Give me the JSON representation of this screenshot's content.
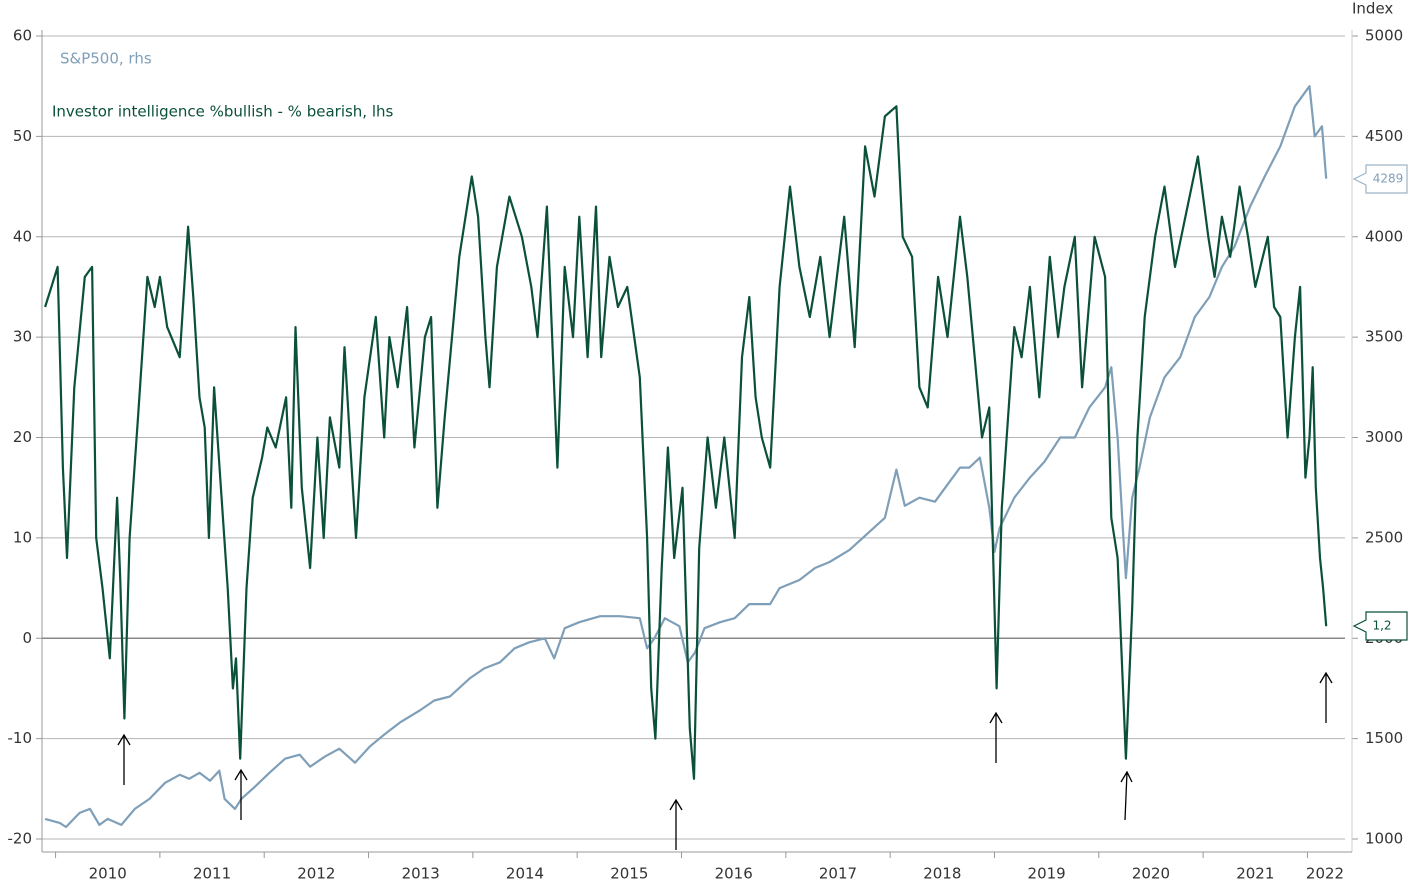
{
  "chart_data": {
    "type": "line",
    "annotations": {
      "y2_unit": "Index",
      "last_spx": "4289",
      "last_ii": "1,2"
    },
    "xlim": [
      2009.87,
      2022.36
    ],
    "xticks": [
      {
        "value": 2010,
        "label": "2010"
      },
      {
        "value": 2011,
        "label": "2011"
      },
      {
        "value": 2012,
        "label": "2012"
      },
      {
        "value": 2013,
        "label": "2013"
      },
      {
        "value": 2014,
        "label": "2014"
      },
      {
        "value": 2015,
        "label": "2015"
      },
      {
        "value": 2016,
        "label": "2016"
      },
      {
        "value": 2017,
        "label": "2017"
      },
      {
        "value": 2018,
        "label": "2018"
      },
      {
        "value": 2019,
        "label": "2019"
      },
      {
        "value": 2020,
        "label": "2020"
      },
      {
        "value": 2021,
        "label": "2021"
      },
      {
        "value": 2022,
        "label": "2022"
      }
    ],
    "ylim": [
      -20,
      60
    ],
    "yticks": [
      -20,
      -10,
      0,
      10,
      20,
      30,
      40,
      50,
      60
    ],
    "y2lim": [
      1000,
      5000
    ],
    "y2ticks": [
      1000,
      1500,
      2000,
      2500,
      3000,
      3500,
      4000,
      4500,
      5000
    ],
    "grid": true,
    "series": [
      {
        "name": "S&P500, rhs",
        "color": "#7f9fb8",
        "axis": "y2",
        "x": [
          2009.9,
          2010.04,
          2010.1,
          2010.23,
          2010.33,
          2010.42,
          2010.5,
          2010.63,
          2010.76,
          2010.9,
          2011.05,
          2011.19,
          2011.28,
          2011.38,
          2011.48,
          2011.57,
          2011.62,
          2011.72,
          2011.78,
          2011.91,
          2012.05,
          2012.2,
          2012.34,
          2012.44,
          2012.58,
          2012.72,
          2012.87,
          2013.01,
          2013.15,
          2013.3,
          2013.49,
          2013.63,
          2013.78,
          2013.97,
          2014.11,
          2014.26,
          2014.4,
          2014.54,
          2014.69,
          2014.78,
          2014.88,
          2015.02,
          2015.22,
          2015.41,
          2015.6,
          2015.67,
          2015.74,
          2015.84,
          2015.98,
          2016.06,
          2016.13,
          2016.22,
          2016.37,
          2016.51,
          2016.65,
          2016.85,
          2016.94,
          2017.13,
          2017.28,
          2017.42,
          2017.61,
          2017.8,
          2017.95,
          2018.06,
          2018.14,
          2018.28,
          2018.43,
          2018.57,
          2018.67,
          2018.76,
          2018.86,
          2018.95,
          2019.0,
          2019.05,
          2019.19,
          2019.34,
          2019.48,
          2019.63,
          2019.77,
          2019.91,
          2020.06,
          2020.12,
          2020.18,
          2020.23,
          2020.26,
          2020.32,
          2020.39,
          2020.49,
          2020.63,
          2020.78,
          2020.92,
          2021.06,
          2021.18,
          2021.3,
          2021.45,
          2021.59,
          2021.74,
          2021.88,
          2022.02,
          2022.07,
          2022.14,
          2022.18
        ],
        "values": [
          1100,
          1080,
          1060,
          1130,
          1150,
          1070,
          1100,
          1070,
          1150,
          1200,
          1280,
          1320,
          1300,
          1330,
          1290,
          1340,
          1200,
          1150,
          1200,
          1260,
          1330,
          1400,
          1420,
          1360,
          1410,
          1450,
          1380,
          1460,
          1520,
          1580,
          1640,
          1690,
          1710,
          1800,
          1850,
          1880,
          1950,
          1980,
          2000,
          1900,
          2050,
          2080,
          2110,
          2110,
          2100,
          1950,
          2000,
          2100,
          2060,
          1880,
          1930,
          2050,
          2080,
          2100,
          2170,
          2170,
          2250,
          2290,
          2350,
          2380,
          2440,
          2530,
          2600,
          2840,
          2660,
          2700,
          2680,
          2780,
          2850,
          2850,
          2900,
          2650,
          2430,
          2550,
          2700,
          2800,
          2880,
          3000,
          3000,
          3150,
          3250,
          3350,
          3000,
          2550,
          2300,
          2700,
          2850,
          3100,
          3300,
          3400,
          3600,
          3700,
          3850,
          3950,
          4150,
          4300,
          4450,
          4650,
          4750,
          4500,
          4550,
          4289
        ]
      },
      {
        "name": "Investor intelligence %bullish - % bearish, lhs",
        "color": "#0b5138",
        "x": [
          2009.9,
          2009.96,
          2010.02,
          2010.07,
          2010.11,
          2010.18,
          2010.28,
          2010.35,
          2010.39,
          2010.45,
          2010.52,
          2010.59,
          2010.62,
          2010.66,
          2010.71,
          2010.79,
          2010.88,
          2010.95,
          2011.0,
          2011.07,
          2011.19,
          2011.27,
          2011.32,
          2011.38,
          2011.43,
          2011.47,
          2011.52,
          2011.65,
          2011.7,
          2011.73,
          2011.77,
          2011.83,
          2011.89,
          2011.98,
          2012.03,
          2012.11,
          2012.21,
          2012.26,
          2012.3,
          2012.36,
          2012.44,
          2012.51,
          2012.57,
          2012.63,
          2012.72,
          2012.77,
          2012.82,
          2012.88,
          2012.96,
          2013.07,
          2013.15,
          2013.2,
          2013.28,
          2013.37,
          2013.44,
          2013.54,
          2013.6,
          2013.66,
          2013.73,
          2013.87,
          2013.99,
          2014.05,
          2014.12,
          2014.16,
          2014.23,
          2014.35,
          2014.47,
          2014.56,
          2014.62,
          2014.71,
          2014.81,
          2014.88,
          2014.96,
          2015.02,
          2015.1,
          2015.18,
          2015.23,
          2015.31,
          2015.39,
          2015.48,
          2015.6,
          2015.67,
          2015.71,
          2015.75,
          2015.81,
          2015.87,
          2015.93,
          2016.01,
          2016.08,
          2016.12,
          2016.17,
          2016.25,
          2016.33,
          2016.41,
          2016.51,
          2016.58,
          2016.65,
          2016.71,
          2016.77,
          2016.85,
          2016.94,
          2017.04,
          2017.13,
          2017.23,
          2017.33,
          2017.42,
          2017.56,
          2017.66,
          2017.76,
          2017.85,
          2017.95,
          2018.06,
          2018.12,
          2018.21,
          2018.28,
          2018.36,
          2018.46,
          2018.55,
          2018.67,
          2018.74,
          2018.81,
          2018.88,
          2018.95,
          2019.02,
          2019.07,
          2019.19,
          2019.26,
          2019.34,
          2019.43,
          2019.53,
          2019.61,
          2019.67,
          2019.77,
          2019.84,
          2019.96,
          2020.06,
          2020.12,
          2020.18,
          2020.26,
          2020.32,
          2020.37,
          2020.44,
          2020.54,
          2020.63,
          2020.73,
          2020.95,
          2021.05,
          2021.11,
          2021.18,
          2021.26,
          2021.35,
          2021.43,
          2021.5,
          2021.62,
          2021.68,
          2021.74,
          2021.81,
          2021.88,
          2021.93,
          2021.98,
          2022.02,
          2022.05,
          2022.08,
          2022.12,
          2022.15,
          2022.18
        ],
        "values": [
          33,
          35,
          37,
          17,
          8,
          25,
          36,
          37,
          10,
          5,
          -2,
          14,
          6,
          -8,
          10,
          22,
          36,
          33,
          36,
          31,
          28,
          41,
          34,
          24,
          21,
          10,
          25,
          5,
          -5,
          -2,
          -12,
          5,
          14,
          18,
          21,
          19,
          24,
          13,
          31,
          15,
          7,
          20,
          10,
          22,
          17,
          29,
          20,
          10,
          24,
          32,
          20,
          30,
          25,
          33,
          19,
          30,
          32,
          13,
          22,
          38,
          46,
          42,
          30,
          25,
          37,
          44,
          40,
          35,
          30,
          43,
          17,
          37,
          30,
          42,
          28,
          43,
          28,
          38,
          33,
          35,
          26,
          10,
          -5,
          -10,
          7,
          19,
          8,
          15,
          -9,
          -14,
          9,
          20,
          13,
          20,
          10,
          28,
          34,
          24,
          20,
          17,
          35,
          45,
          37,
          32,
          38,
          30,
          42,
          29,
          49,
          44,
          52,
          53,
          40,
          38,
          25,
          23,
          36,
          30,
          42,
          36,
          28,
          20,
          23,
          -5,
          13,
          31,
          28,
          35,
          24,
          38,
          30,
          35,
          40,
          25,
          40,
          36,
          12,
          8,
          -12,
          3,
          20,
          32,
          40,
          45,
          37,
          48,
          40,
          36,
          42,
          38,
          45,
          40,
          35,
          40,
          33,
          32,
          20,
          30,
          35,
          16,
          20,
          27,
          15,
          8,
          5,
          1.2
        ]
      }
    ]
  }
}
